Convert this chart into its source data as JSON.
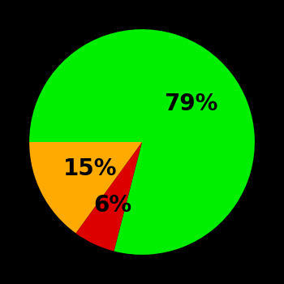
{
  "slices": [
    79,
    6,
    15
  ],
  "colors": [
    "#00ee00",
    "#dd0000",
    "#ffaa00"
  ],
  "labels": [
    "79%",
    "6%",
    "15%"
  ],
  "background_color": "#000000",
  "startangle": 180,
  "label_fontsize": 20,
  "label_fontweight": "bold",
  "label_radii": [
    0.55,
    0.62,
    0.52
  ]
}
